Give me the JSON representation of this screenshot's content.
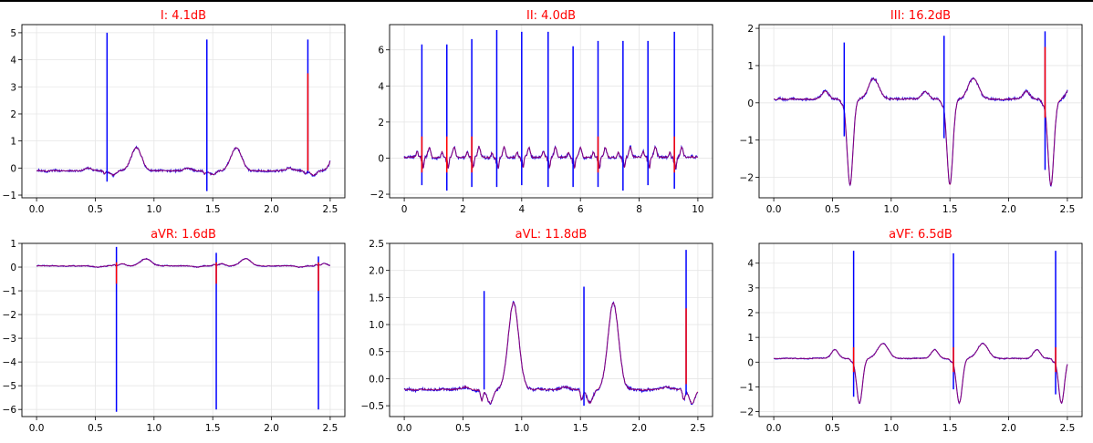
{
  "chart_data": [
    {
      "type": "line",
      "title": "I: 4.1dB",
      "xlim": [
        -0.125,
        2.625
      ],
      "ylim": [
        -1.1,
        5.3
      ],
      "xticks": [
        0.0,
        0.5,
        1.0,
        1.5,
        2.0,
        2.5
      ],
      "xticklabels": [
        "0.0",
        "0.5",
        "1.0",
        "1.5",
        "2.0",
        "2.5"
      ],
      "yticks": [
        -1,
        0,
        1,
        2,
        3,
        4,
        5
      ],
      "yticklabels": [
        "−1",
        "0",
        "1",
        "2",
        "3",
        "4",
        "5"
      ],
      "grid": true,
      "duration": 2.5,
      "beats": [
        0.6,
        1.45,
        2.31
      ],
      "baseline": -0.1,
      "spikes": [
        {
          "series": "blue",
          "values": [
            [
              0.6,
              5.0,
              -0.5
            ],
            [
              1.45,
              4.75,
              -0.85
            ],
            [
              2.31,
              4.75,
              -0.2
            ]
          ]
        },
        {
          "series": "red",
          "values": [
            [
              2.31,
              3.5,
              -0.1
            ]
          ]
        }
      ],
      "waves": {
        "p": 0.1,
        "q": -0.1,
        "s": -0.15,
        "t": 0.85
      },
      "noise": 0.06,
      "series": [
        {
          "color": "#0000ff",
          "values": []
        },
        {
          "color": "#ff0000",
          "values": []
        }
      ]
    },
    {
      "type": "line",
      "title": "II: 4.0dB",
      "xlim": [
        -0.5,
        10.5
      ],
      "ylim": [
        -2.2,
        7.4
      ],
      "xticks": [
        0,
        2,
        4,
        6,
        8,
        10
      ],
      "xticklabels": [
        "0",
        "2",
        "4",
        "6",
        "8",
        "10"
      ],
      "yticks": [
        -2,
        0,
        2,
        4,
        6
      ],
      "yticklabels": [
        "−2",
        "0",
        "2",
        "4",
        "6"
      ],
      "grid": true,
      "duration": 10,
      "beats": [
        0.6,
        1.45,
        2.3,
        3.15,
        4.0,
        4.9,
        5.75,
        6.6,
        7.45,
        8.3,
        9.2
      ],
      "baseline": 0.05,
      "spikes": [
        {
          "series": "blue",
          "values": [
            [
              0.6,
              6.3,
              -1.5
            ],
            [
              1.45,
              6.3,
              -1.8
            ],
            [
              2.3,
              6.6,
              -1.6
            ],
            [
              3.15,
              7.1,
              -1.6
            ],
            [
              4.0,
              7.0,
              -1.5
            ],
            [
              4.9,
              7.0,
              -1.6
            ],
            [
              5.75,
              6.2,
              -1.6
            ],
            [
              6.6,
              6.5,
              -1.6
            ],
            [
              7.45,
              6.5,
              -1.8
            ],
            [
              8.3,
              6.5,
              -1.5
            ],
            [
              9.2,
              7.0,
              -1.7
            ]
          ]
        },
        {
          "series": "red",
          "values": [
            [
              0.6,
              1.2,
              -0.8
            ],
            [
              1.45,
              1.2,
              -0.8
            ],
            [
              2.3,
              1.2,
              -0.8
            ],
            [
              6.6,
              1.2,
              -0.8
            ],
            [
              9.2,
              1.2,
              -0.8
            ]
          ]
        }
      ],
      "waves": {
        "p": 0.3,
        "q": -0.3,
        "s": -0.6,
        "t": 0.55
      },
      "noise": 0.12,
      "series": [
        {
          "color": "#0000ff",
          "values": []
        },
        {
          "color": "#ff0000",
          "values": []
        }
      ]
    },
    {
      "type": "line",
      "title": "III: 16.2dB",
      "xlim": [
        -0.125,
        2.625
      ],
      "ylim": [
        -2.55,
        2.1
      ],
      "xticks": [
        0.0,
        0.5,
        1.0,
        1.5,
        2.0,
        2.5
      ],
      "xticklabels": [
        "0.0",
        "0.5",
        "1.0",
        "1.5",
        "2.0",
        "2.5"
      ],
      "yticks": [
        -2,
        -1,
        0,
        1,
        2
      ],
      "yticklabels": [
        "−2",
        "−1",
        "0",
        "1",
        "2"
      ],
      "grid": true,
      "duration": 2.5,
      "beats": [
        0.6,
        1.45,
        2.31
      ],
      "baseline": 0.1,
      "spikes": [
        {
          "series": "blue",
          "values": [
            [
              0.6,
              1.62,
              -0.9
            ],
            [
              1.45,
              1.8,
              -0.95
            ],
            [
              2.31,
              1.92,
              -1.8
            ]
          ]
        },
        {
          "series": "red",
          "values": [
            [
              2.31,
              1.5,
              -0.4
            ]
          ]
        }
      ],
      "waves": {
        "p": 0.2,
        "q": -0.1,
        "s": -2.3,
        "t": 0.55
      },
      "noise": 0.05,
      "series": [
        {
          "color": "#0000ff",
          "values": []
        },
        {
          "color": "#ff0000",
          "values": []
        }
      ]
    },
    {
      "type": "line",
      "title": "aVR: 1.6dB",
      "xlim": [
        -0.125,
        2.625
      ],
      "ylim": [
        -6.3,
        1.0
      ],
      "xticks": [
        0.0,
        0.5,
        1.0,
        1.5,
        2.0,
        2.5
      ],
      "xticklabels": [
        "0.0",
        "0.5",
        "1.0",
        "1.5",
        "2.0",
        "2.5"
      ],
      "yticks": [
        -6,
        -5,
        -4,
        -3,
        -2,
        -1,
        0,
        1
      ],
      "yticklabels": [
        "−6",
        "−5",
        "−4",
        "−3",
        "−2",
        "−1",
        "0",
        "1"
      ],
      "grid": true,
      "duration": 2.5,
      "beats": [
        0.68,
        1.53,
        2.4
      ],
      "baseline": 0.05,
      "spikes": [
        {
          "series": "blue",
          "values": [
            [
              0.68,
              0.85,
              -6.1
            ],
            [
              1.53,
              0.6,
              -6.0
            ],
            [
              2.4,
              0.45,
              -6.0
            ]
          ]
        },
        {
          "series": "red",
          "values": [
            [
              0.68,
              0.2,
              -0.7
            ],
            [
              1.53,
              0.2,
              -0.7
            ],
            [
              2.4,
              0.2,
              -1.0
            ]
          ]
        }
      ],
      "waves": {
        "p": -0.05,
        "q": 0.05,
        "s": 0.1,
        "t": 0.3
      },
      "noise": 0.03,
      "series": [
        {
          "color": "#0000ff",
          "values": []
        },
        {
          "color": "#ff0000",
          "values": []
        }
      ]
    },
    {
      "type": "line",
      "title": "aVL: 11.8dB",
      "xlim": [
        -0.125,
        2.625
      ],
      "ylim": [
        -0.7,
        2.5
      ],
      "xticks": [
        0.0,
        0.5,
        1.0,
        1.5,
        2.0,
        2.5
      ],
      "xticklabels": [
        "0.0",
        "0.5",
        "1.0",
        "1.5",
        "2.0",
        "2.5"
      ],
      "yticks": [
        -0.5,
        0.0,
        0.5,
        1.0,
        1.5,
        2.0,
        2.5
      ],
      "yticklabels": [
        "−0.5",
        "0.0",
        "0.5",
        "1.0",
        "1.5",
        "2.0",
        "2.5"
      ],
      "grid": true,
      "duration": 2.5,
      "beats": [
        0.68,
        1.53,
        2.4
      ],
      "baseline": -0.2,
      "spikes": [
        {
          "series": "blue",
          "values": [
            [
              0.68,
              1.62,
              -0.2
            ],
            [
              1.53,
              1.7,
              -0.5
            ],
            [
              2.4,
              2.38,
              -0.3
            ]
          ]
        },
        {
          "series": "red",
          "values": [
            [
              2.4,
              1.3,
              -0.1
            ]
          ]
        }
      ],
      "waves": {
        "p": 0.05,
        "q": -0.2,
        "s": -0.25,
        "t": 1.6
      },
      "noise": 0.04,
      "series": [
        {
          "color": "#0000ff",
          "values": []
        },
        {
          "color": "#ff0000",
          "values": []
        }
      ]
    },
    {
      "type": "line",
      "title": "aVF: 6.5dB",
      "xlim": [
        -0.125,
        2.625
      ],
      "ylim": [
        -2.2,
        4.8
      ],
      "xticks": [
        0.0,
        0.5,
        1.0,
        1.5,
        2.0,
        2.5
      ],
      "xticklabels": [
        "0.0",
        "0.5",
        "1.0",
        "1.5",
        "2.0",
        "2.5"
      ],
      "yticks": [
        -2,
        -1,
        0,
        1,
        2,
        3,
        4
      ],
      "yticklabels": [
        "−2",
        "−1",
        "0",
        "1",
        "2",
        "3",
        "4"
      ],
      "grid": true,
      "duration": 2.5,
      "beats": [
        0.68,
        1.53,
        2.4
      ],
      "baseline": 0.15,
      "spikes": [
        {
          "series": "blue",
          "values": [
            [
              0.68,
              4.5,
              -1.4
            ],
            [
              1.53,
              4.4,
              -1.1
            ],
            [
              2.4,
              4.5,
              -1.3
            ]
          ]
        },
        {
          "series": "red",
          "values": [
            [
              0.68,
              0.6,
              -0.4
            ],
            [
              1.53,
              0.6,
              -0.4
            ],
            [
              2.4,
              0.6,
              -0.4
            ]
          ]
        }
      ],
      "waves": {
        "p": 0.35,
        "q": -0.1,
        "s": -1.8,
        "t": 0.6
      },
      "noise": 0.03,
      "series": [
        {
          "color": "#0000ff",
          "values": []
        },
        {
          "color": "#ff0000",
          "values": []
        }
      ]
    }
  ]
}
